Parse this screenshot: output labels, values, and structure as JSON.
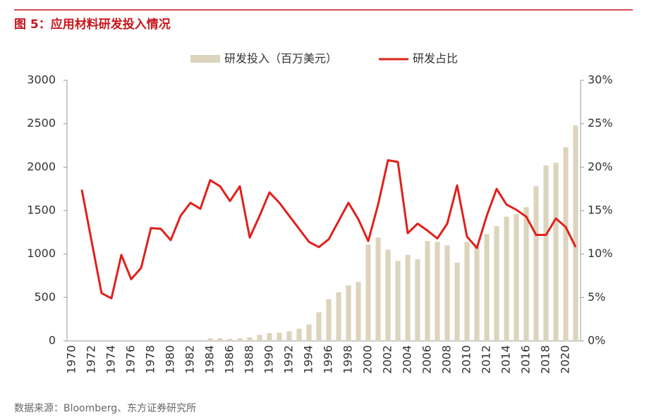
{
  "header": {
    "title": "图 5：应用材料研发投入情况"
  },
  "chart_data": {
    "type": "bar-line",
    "categories": [
      "1970",
      null,
      "1972",
      null,
      "1974",
      null,
      "1976",
      null,
      "1978",
      null,
      "1980",
      null,
      "1982",
      null,
      "1984",
      null,
      "1986",
      null,
      "1988",
      null,
      "1990",
      null,
      "1992",
      null,
      "1994",
      null,
      "1996",
      null,
      "1998",
      null,
      "2000",
      null,
      "2002",
      null,
      "2004",
      null,
      "2006",
      null,
      "2008",
      null,
      "2010",
      null,
      "2012",
      null,
      "2014",
      null,
      "2016",
      null,
      "2018",
      null,
      "2020",
      null
    ],
    "series": [
      {
        "name": "研发投入（百万美元）",
        "type": "bar",
        "color": "#ddd4bc",
        "values": [
          0,
          0,
          0,
          0,
          0,
          0,
          0,
          0,
          0,
          0,
          0,
          0,
          0,
          0,
          30,
          30,
          25,
          30,
          40,
          70,
          90,
          95,
          110,
          140,
          190,
          330,
          480,
          560,
          640,
          680,
          1110,
          1190,
          1050,
          920,
          990,
          940,
          1150,
          1140,
          1100,
          900,
          1140,
          1100,
          1230,
          1320,
          1430,
          1460,
          1540,
          1780,
          2020,
          2050,
          2230,
          2480
        ]
      },
      {
        "name": "研发占比",
        "type": "line",
        "axis": "y2",
        "color": "#e0201c",
        "values": [
          null,
          17.4,
          11.4,
          5.5,
          4.9,
          9.9,
          7.1,
          8.4,
          13.0,
          12.9,
          11.6,
          14.4,
          15.9,
          15.2,
          18.5,
          17.8,
          16.1,
          17.8,
          11.9,
          14.4,
          17.1,
          15.9,
          14.4,
          12.9,
          11.4,
          10.8,
          11.7,
          13.8,
          15.9,
          14.0,
          11.5,
          15.7,
          20.8,
          20.6,
          12.4,
          13.5,
          12.7,
          11.8,
          13.5,
          17.9,
          12.0,
          10.7,
          14.4,
          17.5,
          15.7,
          15.1,
          14.3,
          12.2,
          12.2,
          14.1,
          13.1,
          10.8
        ]
      }
    ],
    "ylim": [
      0,
      3000
    ],
    "yticks": [
      0,
      500,
      1000,
      1500,
      2000,
      2500,
      3000
    ],
    "y2lim": [
      0,
      30
    ],
    "y2ticks": [
      {
        "value": 0,
        "label": "0%"
      },
      {
        "value": 5,
        "label": "5%"
      },
      {
        "value": 10,
        "label": "10%"
      },
      {
        "value": 15,
        "label": "15%"
      },
      {
        "value": 20,
        "label": "20%"
      },
      {
        "value": 25,
        "label": "25%"
      },
      {
        "value": 30,
        "label": "30%"
      }
    ],
    "grid": false,
    "legend": "top"
  },
  "footer": {
    "source": "数据来源：Bloomberg、东方证券研究所"
  }
}
